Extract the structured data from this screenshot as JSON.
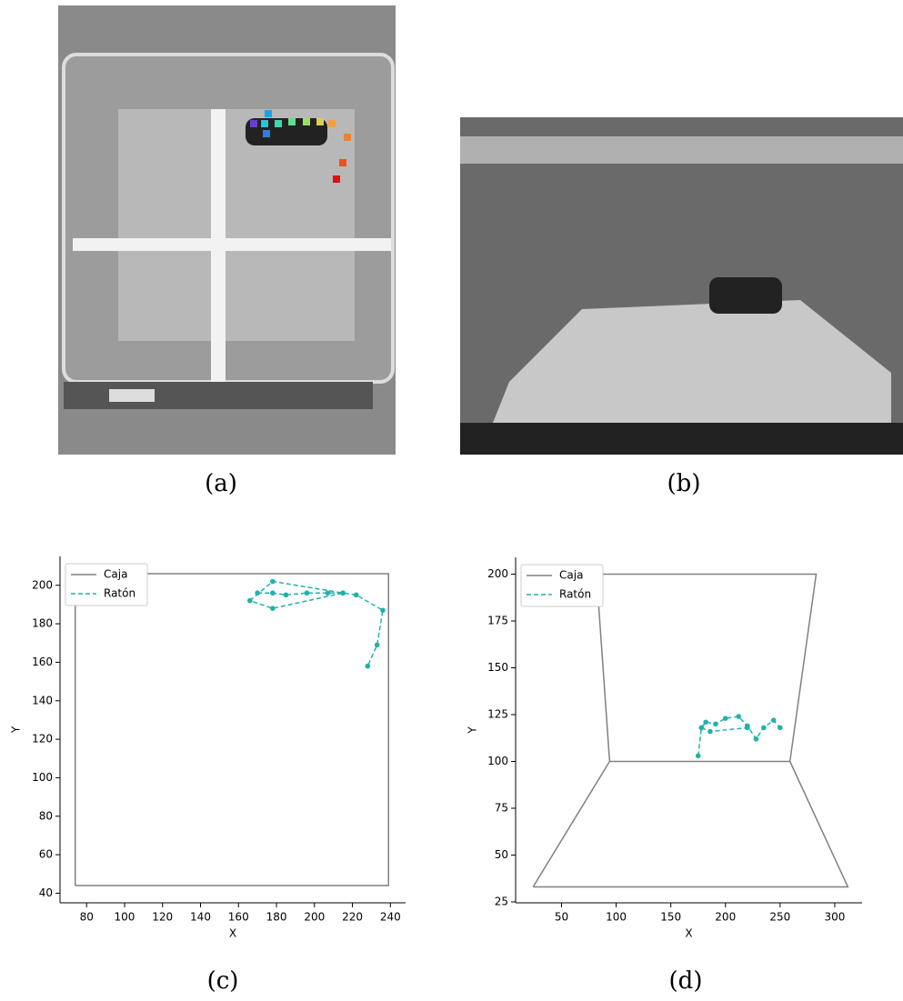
{
  "captions": [
    "(a)",
    "(b)",
    "(c)",
    "(d)"
  ],
  "chart_data": [
    {
      "type": "line",
      "xlabel": "X",
      "ylabel": "Y",
      "xlim": [
        66,
        248
      ],
      "ylim": [
        35,
        215
      ],
      "xticks": [
        80,
        100,
        120,
        140,
        160,
        180,
        200,
        220,
        240
      ],
      "yticks": [
        40,
        60,
        80,
        100,
        120,
        140,
        160,
        180,
        200
      ],
      "legend": "upper left",
      "series": [
        {
          "name": "Caja",
          "color": "#808080",
          "dash": "solid",
          "marker": "none",
          "x": [
            74,
            74,
            239,
            239,
            74
          ],
          "values": [
            44,
            206,
            206,
            44,
            44
          ]
        },
        {
          "name": "Ratón",
          "color": "#20b2aa",
          "dash": "dashed",
          "marker": "o",
          "x": [
            166,
            178,
            215,
            178,
            166,
            null,
            170,
            178,
            185,
            196,
            207,
            215,
            222,
            236,
            233,
            228
          ],
          "values": [
            192,
            202,
            196,
            188,
            192,
            null,
            196,
            196,
            195,
            196,
            196,
            196,
            195,
            187,
            169,
            158
          ]
        }
      ]
    },
    {
      "type": "line",
      "xlabel": "X",
      "ylabel": "Y",
      "xlim": [
        8,
        325
      ],
      "ylim": [
        24.5,
        209
      ],
      "xticks": [
        50,
        100,
        150,
        200,
        250,
        300
      ],
      "yticks": [
        25,
        50,
        75,
        100,
        125,
        150,
        175,
        200
      ],
      "legend": "upper left",
      "series": [
        {
          "name": "Caja",
          "color": "#808080",
          "dash": "solid",
          "marker": "none",
          "x": [
            24,
            94,
            82,
            283,
            259,
            312,
            24,
            null,
            94,
            259
          ],
          "values": [
            33,
            100,
            200,
            200,
            100,
            33,
            33,
            null,
            100,
            100
          ]
        },
        {
          "name": "Ratón",
          "color": "#20b2aa",
          "dash": "dashed",
          "marker": "o",
          "x": [
            175,
            178,
            182,
            191,
            200,
            212,
            220,
            228,
            235,
            244,
            250,
            null,
            178,
            186,
            220
          ],
          "values": [
            103,
            118,
            121,
            120,
            123,
            124,
            119,
            112,
            118,
            122,
            118,
            null,
            118,
            116,
            118
          ]
        }
      ]
    }
  ]
}
